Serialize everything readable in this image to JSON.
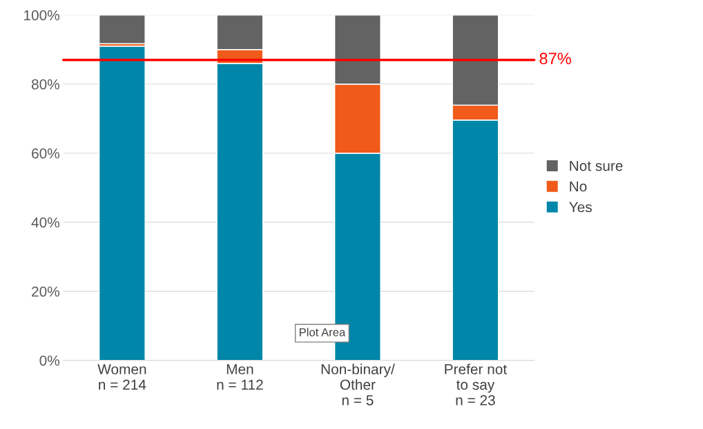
{
  "chart_data": {
    "type": "bar",
    "stacked": true,
    "categories": [
      "Women\nn = 214",
      "Men\nn = 112",
      "Non-binary/\nOther\nn = 5",
      "Prefer not\nto say\nn = 23"
    ],
    "series": [
      {
        "name": "Yes",
        "color": "#0086a8",
        "values": [
          91,
          86,
          60,
          69.6
        ]
      },
      {
        "name": "No",
        "color": "#f05a1a",
        "values": [
          0.7,
          4,
          20,
          4.3
        ]
      },
      {
        "name": "Not sure",
        "color": "#636363",
        "values": [
          8.3,
          10,
          20,
          26.1
        ]
      }
    ],
    "ylim": [
      0,
      100
    ],
    "yticks": [
      {
        "value": 0,
        "label": "0%"
      },
      {
        "value": 20,
        "label": "20%"
      },
      {
        "value": 40,
        "label": "40%"
      },
      {
        "value": 60,
        "label": "60%"
      },
      {
        "value": 80,
        "label": "80%"
      },
      {
        "value": 100,
        "label": "100%"
      }
    ],
    "grid": "y",
    "legend": "right",
    "ref_lines": [
      {
        "axis": "y",
        "value": 87,
        "label": "87%",
        "color": "#ff0000"
      }
    ],
    "annotations": [
      "Plot Area"
    ]
  }
}
